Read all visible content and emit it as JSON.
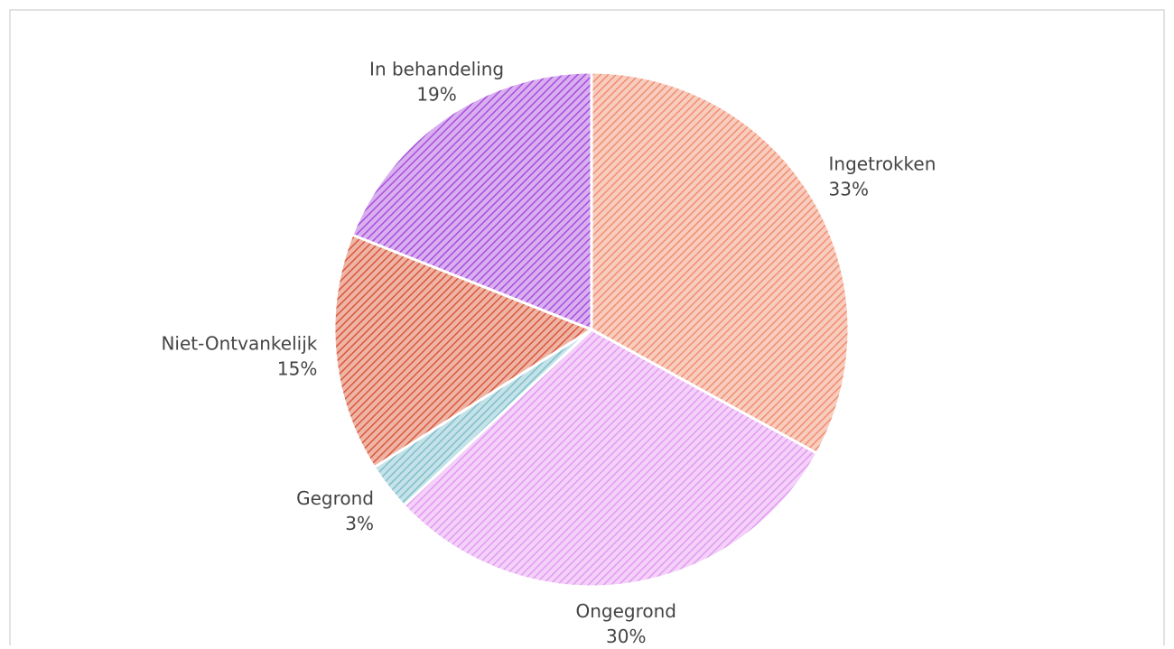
{
  "chart_data": {
    "type": "pie",
    "categories": [
      "Ingetrokken",
      "Ongegrond",
      "Gegrond",
      "Niet-Ontvankelijk",
      "In behandeling"
    ],
    "values": [
      33,
      30,
      3,
      15,
      19
    ],
    "value_labels": [
      "33%",
      "30%",
      "3%",
      "15%",
      "19%"
    ],
    "colors": [
      "#f08f70",
      "#e49af2",
      "#7fbfcc",
      "#d9583a",
      "#a94ddd"
    ]
  }
}
